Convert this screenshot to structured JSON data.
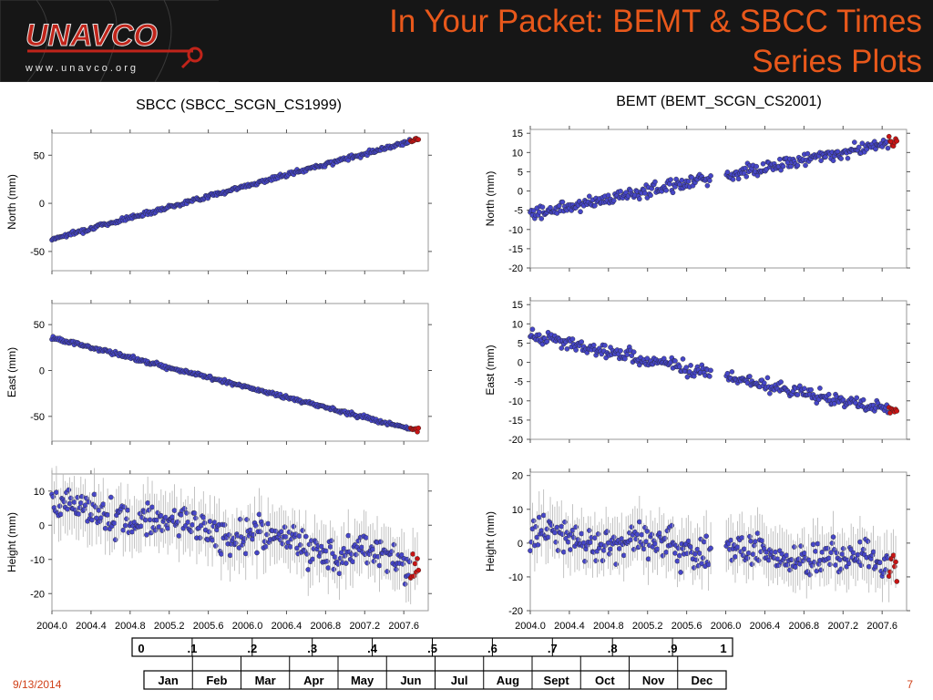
{
  "slide": {
    "title_line1": "In Your Packet: BEMT & SBCC Times",
    "title_line2": "Series Plots",
    "footer_date": "9/13/2014",
    "slide_number": "7"
  },
  "logo": {
    "name": "UNAVCO",
    "url": "w w w . u n a v c o . o r g"
  },
  "colors": {
    "title": "#e8581b",
    "data_points": "#4646c8",
    "recent_points": "#c81414",
    "error_bars": "#b4b4b4",
    "header_bg": "#161616",
    "logo_red": "#c0241a"
  },
  "time_ticks": [
    "2004.0",
    "2004.4",
    "2004.8",
    "2005.2",
    "2005.6",
    "2006.0",
    "2006.4",
    "2006.8",
    "2007.2",
    "2007.6"
  ],
  "chart_data": [
    {
      "type": "scatter",
      "title": "SBCC (SBCC_SCGN_CS1999)",
      "ylabel": "North (mm)",
      "xlim": [
        2004.0,
        2007.85
      ],
      "ylim": [
        -70,
        73
      ],
      "yticks": [
        -50,
        0,
        50
      ],
      "series": [
        {
          "x": [
            2004.0,
            2007.75
          ],
          "y": [
            -37,
            67
          ],
          "trend": "linear",
          "scatter_mm": 1.5
        }
      ]
    },
    {
      "type": "scatter",
      "title": "SBCC (SBCC_SCGN_CS1999)",
      "ylabel": "East (mm)",
      "xlim": [
        2004.0,
        2007.85
      ],
      "ylim": [
        -77,
        73
      ],
      "yticks": [
        -50,
        0,
        50
      ],
      "series": [
        {
          "x": [
            2004.0,
            2007.75
          ],
          "y": [
            36,
            -66
          ],
          "trend": "linear",
          "scatter_mm": 1.5
        }
      ]
    },
    {
      "type": "scatter",
      "title": "SBCC (SBCC_SCGN_CS1999)",
      "ylabel": "Height (mm)",
      "xlim": [
        2004.0,
        2007.85
      ],
      "ylim": [
        -25,
        15
      ],
      "yticks": [
        -20,
        -10,
        0,
        10
      ],
      "series": [
        {
          "x": [
            2004.0,
            2007.75
          ],
          "y": [
            6,
            -11
          ],
          "trend": "linear",
          "scatter_mm": 3.5
        }
      ]
    },
    {
      "type": "scatter",
      "title": "BEMT (BEMT_SCGN_CS2001)",
      "ylabel": "North (mm)",
      "xlim": [
        2004.0,
        2007.85
      ],
      "ylim": [
        -20,
        16
      ],
      "yticks": [
        -20,
        -15,
        -10,
        -5,
        0,
        5,
        10,
        15
      ],
      "series": [
        {
          "x": [
            2004.0,
            2007.75
          ],
          "y": [
            -6,
            13
          ],
          "trend": "linear",
          "scatter_mm": 1.2,
          "gap": [
            2005.85,
            2006.0
          ]
        }
      ]
    },
    {
      "type": "scatter",
      "title": "BEMT (BEMT_SCGN_CS2001)",
      "ylabel": "East (mm)",
      "xlim": [
        2004.0,
        2007.85
      ],
      "ylim": [
        -20,
        16
      ],
      "yticks": [
        -20,
        -15,
        -10,
        -5,
        0,
        5,
        10,
        15
      ],
      "series": [
        {
          "x": [
            2004.0,
            2007.75
          ],
          "y": [
            7,
            -13
          ],
          "trend": "linear",
          "scatter_mm": 1.2,
          "gap": [
            2005.85,
            2006.0
          ]
        }
      ]
    },
    {
      "type": "scatter",
      "title": "BEMT (BEMT_SCGN_CS2001)",
      "ylabel": "Height (mm)",
      "xlim": [
        2004.0,
        2007.85
      ],
      "ylim": [
        -20,
        21
      ],
      "yticks": [
        -20,
        -10,
        0,
        10,
        20
      ],
      "series": [
        {
          "x": [
            2004.0,
            2007.75
          ],
          "y": [
            2,
            -6
          ],
          "trend": "linear",
          "scatter_mm": 3.5,
          "gap": [
            2005.85,
            2006.0
          ]
        }
      ]
    }
  ],
  "decoder": {
    "fractions": [
      "0",
      ".1",
      ".2",
      ".3",
      ".4",
      ".5",
      ".6",
      ".7",
      ".8",
      ".9",
      "1"
    ],
    "months": [
      "Jan",
      "Feb",
      "Mar",
      "Apr",
      "May",
      "Jun",
      "Jul",
      "Aug",
      "Sept",
      "Oct",
      "Nov",
      "Dec"
    ]
  }
}
